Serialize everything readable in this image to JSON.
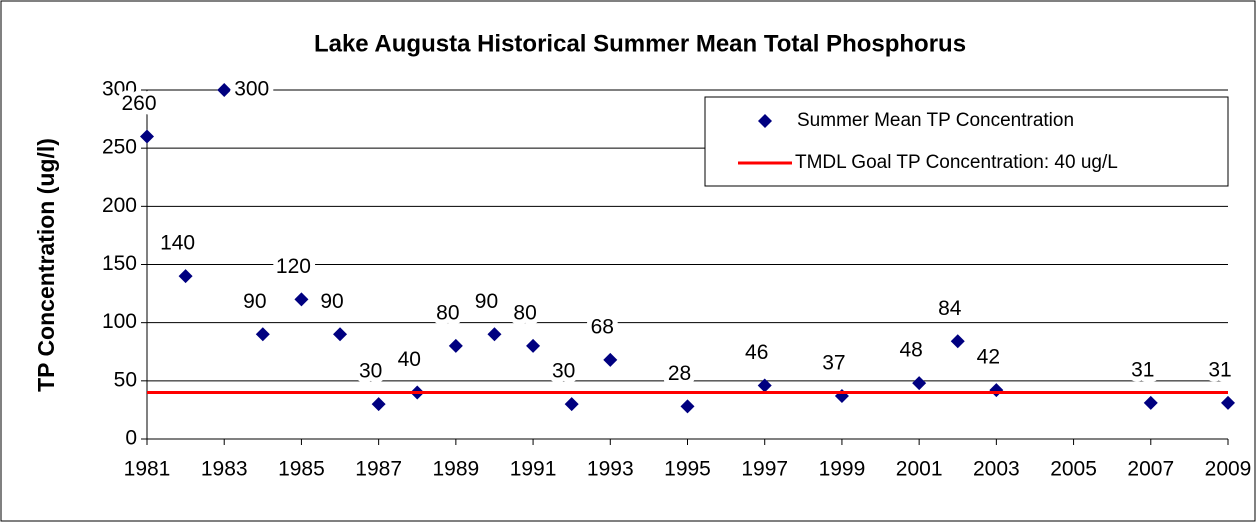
{
  "chart_data": {
    "type": "scatter",
    "title": "Lake Augusta Historical Summer Mean Total Phosphorus",
    "y_label": "TP Concentration (ug/l)",
    "xlim": [
      1981,
      2009
    ],
    "xticks": [
      1981,
      1983,
      1985,
      1987,
      1989,
      1991,
      1993,
      1995,
      1997,
      1999,
      2001,
      2003,
      2005,
      2007,
      2009
    ],
    "ylim": [
      0,
      300
    ],
    "yticks": [
      0,
      50,
      100,
      150,
      200,
      250,
      300
    ],
    "grid": true,
    "legend": "upper right",
    "series": [
      {
        "name": "Summer Mean TP Concentration",
        "type": "scatter",
        "color": "#000080",
        "x": [
          1981,
          1982,
          1983,
          1984,
          1985,
          1986,
          1987,
          1988,
          1989,
          1990,
          1991,
          1992,
          1993,
          1995,
          1997,
          1999,
          2001,
          2002,
          2003,
          2007,
          2009
        ],
        "values": [
          260,
          140,
          300,
          90,
          120,
          90,
          30,
          40,
          80,
          90,
          80,
          30,
          68,
          28,
          46,
          37,
          48,
          84,
          42,
          31,
          31
        ]
      },
      {
        "name": "TMDL Goal TP Concentration: 40 ug/L",
        "type": "line",
        "color": "#ff0000",
        "x": [
          1981,
          2009
        ],
        "values": [
          40,
          40
        ]
      }
    ]
  }
}
